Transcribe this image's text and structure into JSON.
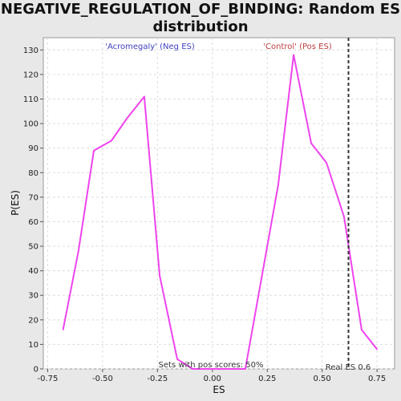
{
  "chart_data": {
    "type": "line",
    "title_line1": "NEGATIVE_REGULATION_OF_BINDING: Random ES",
    "title_line2": "distribution",
    "xlabel": "ES",
    "ylabel": "P(ES)",
    "xlim": [
      -0.77,
      0.83
    ],
    "ylim": [
      0,
      135
    ],
    "x_ticks": [
      "-0.75",
      "-0.50",
      "-0.25",
      "0.00",
      "0.25",
      "0.50",
      "0.75"
    ],
    "x_tick_values": [
      -0.75,
      -0.5,
      -0.25,
      0,
      0.25,
      0.5,
      0.75
    ],
    "y_ticks": [
      "0",
      "10",
      "20",
      "30",
      "40",
      "50",
      "60",
      "70",
      "80",
      "90",
      "100",
      "110",
      "120",
      "130"
    ],
    "y_tick_values": [
      0,
      10,
      20,
      30,
      40,
      50,
      60,
      70,
      80,
      90,
      100,
      110,
      120,
      130
    ],
    "grid": true,
    "series": [
      {
        "color": "#ee44ee",
        "x": [
          -0.68,
          -0.61,
          -0.54,
          -0.46,
          -0.39,
          -0.31,
          -0.24,
          -0.16,
          -0.09,
          -0.01,
          0.07,
          0.15,
          0.22,
          0.3,
          0.37,
          0.45,
          0.52,
          0.6,
          0.68,
          0.75
        ],
        "y": [
          16,
          48,
          89,
          93,
          102,
          111,
          38,
          4,
          0,
          0,
          0,
          0,
          35,
          75,
          128,
          92,
          84,
          62,
          16,
          8
        ]
      }
    ],
    "real_es": 0.62,
    "real_es_label": "Real ES 0.6",
    "neg_label": "'Acromegaly' (Neg ES)",
    "pos_label": "'Control' (Pos ES)",
    "sets_note": "Sets with pos scores: 50%"
  },
  "colors": {
    "line": "#ee44ee",
    "neg": "#4040c0",
    "pos": "#c04040",
    "marker": "#333333"
  }
}
